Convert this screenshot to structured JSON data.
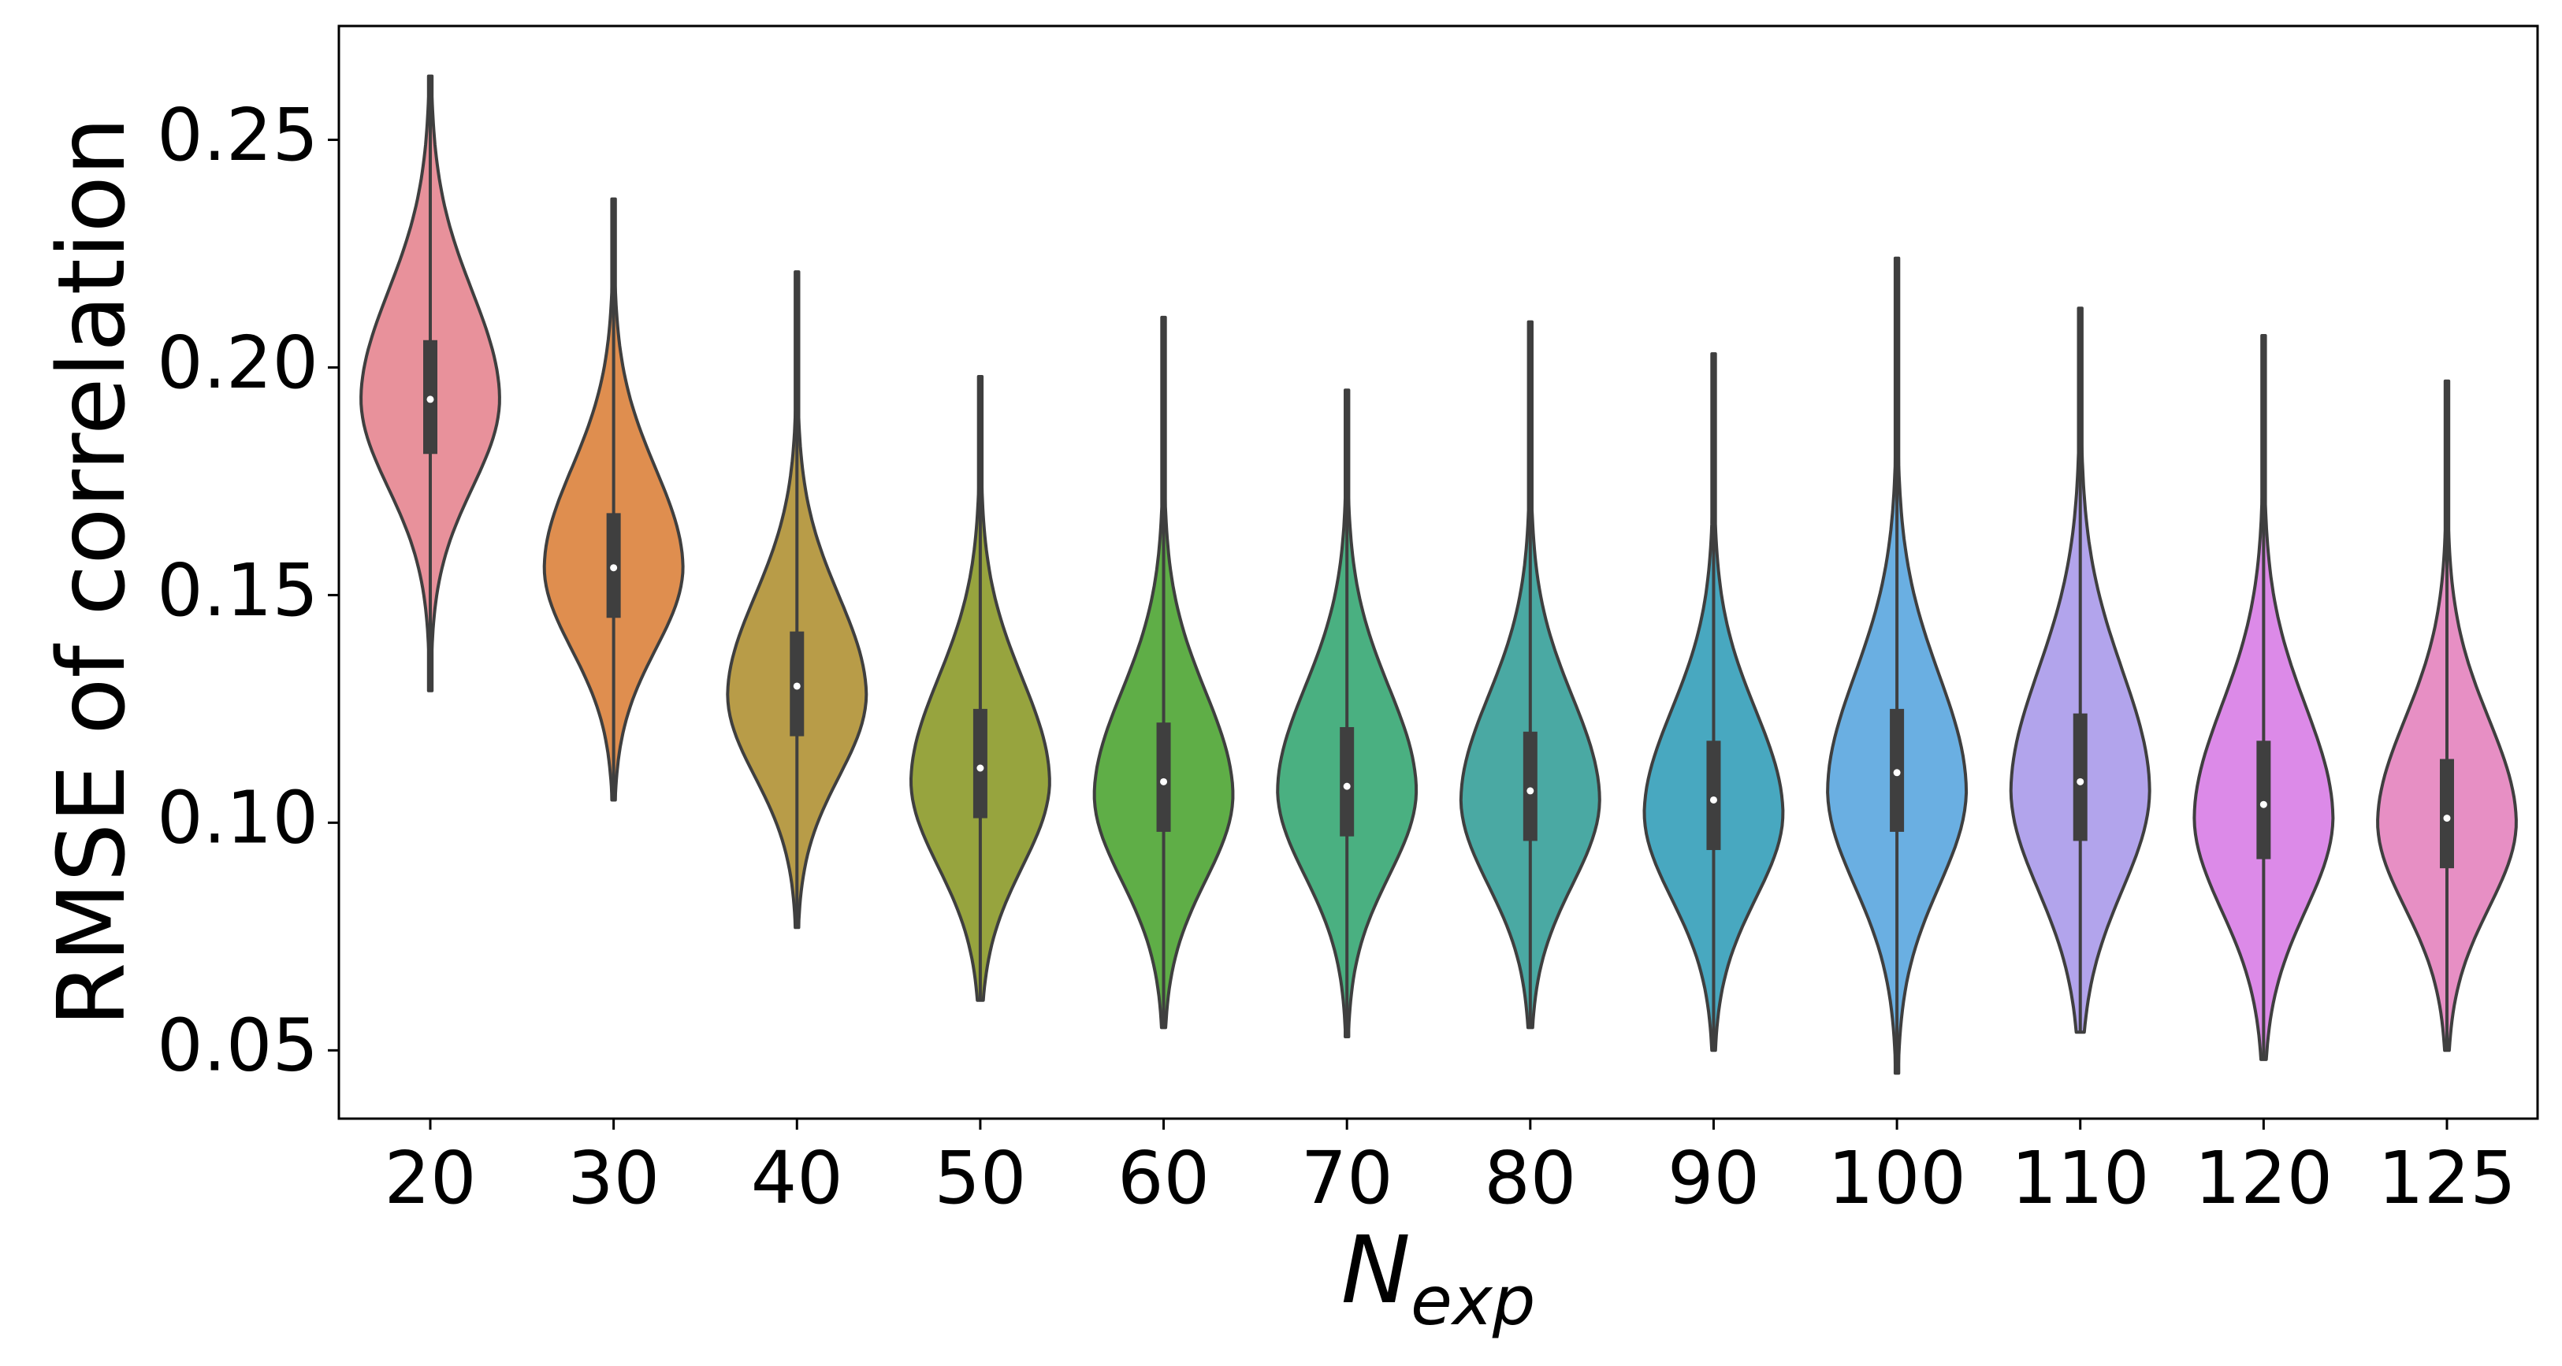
{
  "chart_data": {
    "type": "violin",
    "title": "",
    "xlabel": "N",
    "xlabel_subscript": "exp",
    "ylabel": "RMSE of correlation",
    "ylim": [
      0.035,
      0.275
    ],
    "yticks": [
      "0.05",
      "0.10",
      "0.15",
      "0.20",
      "0.25"
    ],
    "ytick_values": [
      0.05,
      0.1,
      0.15,
      0.2,
      0.25
    ],
    "grid": false,
    "legend": "none",
    "categories": [
      "20",
      "30",
      "40",
      "50",
      "60",
      "70",
      "80",
      "90",
      "100",
      "110",
      "120",
      "125"
    ],
    "colors": [
      "#e8919b",
      "#df8e4f",
      "#b89c48",
      "#97a43e",
      "#5fae47",
      "#4ab081",
      "#4aa9a3",
      "#48a8c0",
      "#6aafe2",
      "#b2a4ec",
      "#dc8ae8",
      "#e78fc4"
    ],
    "series": [
      {
        "category": "20",
        "min": 0.129,
        "q1": 0.181,
        "median": 0.193,
        "q3": 0.206,
        "max": 0.264,
        "mode": 0.193
      },
      {
        "category": "30",
        "min": 0.105,
        "q1": 0.145,
        "median": 0.156,
        "q3": 0.168,
        "max": 0.237,
        "mode": 0.156
      },
      {
        "category": "40",
        "min": 0.077,
        "q1": 0.119,
        "median": 0.13,
        "q3": 0.142,
        "max": 0.221,
        "mode": 0.128
      },
      {
        "category": "50",
        "min": 0.061,
        "q1": 0.101,
        "median": 0.112,
        "q3": 0.125,
        "max": 0.198,
        "mode": 0.109
      },
      {
        "category": "60",
        "min": 0.055,
        "q1": 0.098,
        "median": 0.109,
        "q3": 0.122,
        "max": 0.211,
        "mode": 0.106
      },
      {
        "category": "70",
        "min": 0.053,
        "q1": 0.097,
        "median": 0.108,
        "q3": 0.121,
        "max": 0.195,
        "mode": 0.107
      },
      {
        "category": "80",
        "min": 0.055,
        "q1": 0.096,
        "median": 0.107,
        "q3": 0.12,
        "max": 0.21,
        "mode": 0.105
      },
      {
        "category": "90",
        "min": 0.05,
        "q1": 0.094,
        "median": 0.105,
        "q3": 0.118,
        "max": 0.203,
        "mode": 0.102
      },
      {
        "category": "100",
        "min": 0.045,
        "q1": 0.098,
        "median": 0.111,
        "q3": 0.125,
        "max": 0.224,
        "mode": 0.107
      },
      {
        "category": "110",
        "min": 0.054,
        "q1": 0.096,
        "median": 0.109,
        "q3": 0.124,
        "max": 0.213,
        "mode": 0.107
      },
      {
        "category": "120",
        "min": 0.048,
        "q1": 0.092,
        "median": 0.104,
        "q3": 0.118,
        "max": 0.207,
        "mode": 0.101
      },
      {
        "category": "125",
        "min": 0.05,
        "q1": 0.09,
        "median": 0.101,
        "q3": 0.114,
        "max": 0.197,
        "mode": 0.1
      }
    ]
  }
}
